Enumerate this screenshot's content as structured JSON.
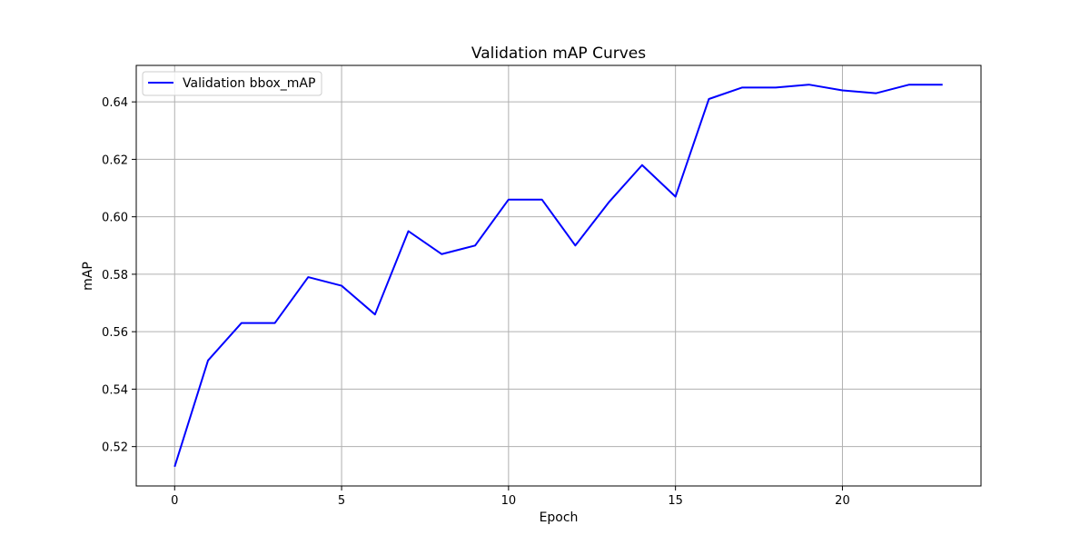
{
  "chart_data": {
    "type": "line",
    "title": "Validation mAP Curves",
    "xlabel": "Epoch",
    "ylabel": "mAP",
    "xlim": [
      -1.15,
      24.15
    ],
    "ylim": [
      0.5063,
      0.6527
    ],
    "xticks": [
      0,
      5,
      10,
      15,
      20
    ],
    "yticks": [
      0.52,
      0.54,
      0.56,
      0.58,
      0.6,
      0.62,
      0.64
    ],
    "xtick_labels": [
      "0",
      "5",
      "10",
      "15",
      "20"
    ],
    "ytick_labels": [
      "0.52",
      "0.54",
      "0.56",
      "0.58",
      "0.60",
      "0.62",
      "0.64"
    ],
    "grid": true,
    "legend_position": "top-left",
    "series": [
      {
        "name": "Validation bbox_mAP",
        "color": "#0000ff",
        "x": [
          0,
          1,
          2,
          3,
          4,
          5,
          6,
          7,
          8,
          9,
          10,
          11,
          12,
          13,
          14,
          15,
          16,
          17,
          18,
          19,
          20,
          21,
          22,
          23
        ],
        "values": [
          0.513,
          0.55,
          0.563,
          0.563,
          0.579,
          0.576,
          0.566,
          0.595,
          0.587,
          0.59,
          0.606,
          0.606,
          0.59,
          0.605,
          0.618,
          0.607,
          0.641,
          0.645,
          0.645,
          0.646,
          0.644,
          0.643,
          0.646,
          0.646
        ]
      }
    ]
  }
}
